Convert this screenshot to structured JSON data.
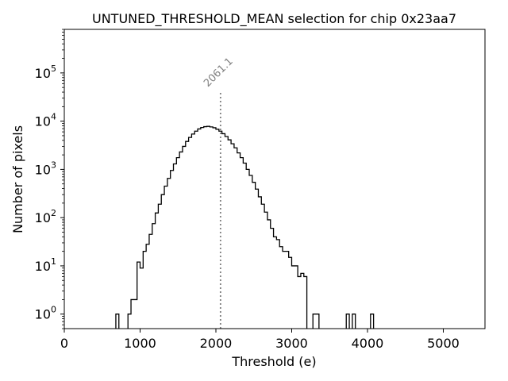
{
  "chart_data": {
    "type": "histogram",
    "title": "UNTUNED_THRESHOLD_MEAN selection for chip 0x23aa7",
    "xlabel": "Threshold (e)",
    "ylabel": "Number of pixels",
    "xlim": [
      0,
      5550
    ],
    "ylim": [
      0.5,
      800000
    ],
    "yscale": "log",
    "grid": false,
    "line_color": "#000000",
    "xticks": [
      {
        "value": 0,
        "label": "0"
      },
      {
        "value": 1000,
        "label": "1000"
      },
      {
        "value": 2000,
        "label": "2000"
      },
      {
        "value": 3000,
        "label": "3000"
      },
      {
        "value": 4000,
        "label": "4000"
      },
      {
        "value": 5000,
        "label": "5000"
      }
    ],
    "yticks": [
      {
        "value": 1,
        "base": "10",
        "exp": "0"
      },
      {
        "value": 10,
        "base": "10",
        "exp": "1"
      },
      {
        "value": 100,
        "base": "10",
        "exp": "2"
      },
      {
        "value": 1000,
        "base": "10",
        "exp": "3"
      },
      {
        "value": 10000,
        "base": "10",
        "exp": "4"
      },
      {
        "value": 100000,
        "base": "10",
        "exp": "5"
      }
    ],
    "bin_width": 40,
    "bin_start": 640,
    "counts": [
      0,
      1,
      0,
      0,
      0,
      1,
      2,
      2,
      12,
      9,
      20,
      28,
      45,
      75,
      125,
      190,
      300,
      450,
      650,
      950,
      1300,
      1750,
      2300,
      3000,
      3800,
      4600,
      5400,
      6200,
      6900,
      7400,
      7700,
      7800,
      7600,
      7300,
      6800,
      6200,
      5500,
      4800,
      4100,
      3400,
      2800,
      2200,
      1750,
      1350,
      1000,
      750,
      540,
      390,
      270,
      190,
      130,
      90,
      60,
      40,
      35,
      25,
      20,
      20,
      15,
      10,
      10,
      6,
      7,
      6,
      0,
      0,
      1,
      1,
      0,
      0,
      0,
      0,
      0,
      0,
      0,
      0,
      0,
      1,
      0,
      1,
      0,
      0,
      0,
      0,
      0,
      1,
      0
    ],
    "mean_line": {
      "value": 2061.1,
      "label": "2061.1",
      "color": "#808080",
      "y_top": 40000
    }
  }
}
